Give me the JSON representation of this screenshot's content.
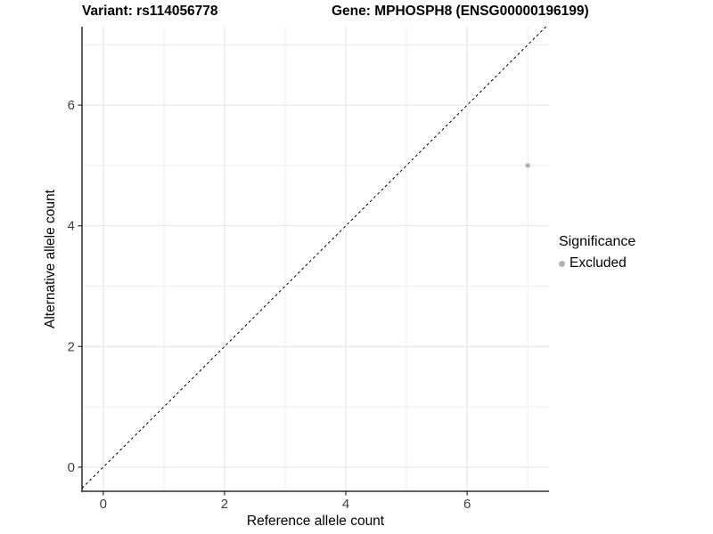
{
  "header": {
    "variant_title": "Variant: rs114056778",
    "gene_title": "Gene: MPHOSPH8 (ENSG00000196199)"
  },
  "legend": {
    "title": "Significance",
    "items": [
      {
        "label": "Excluded",
        "color": "#b3b3b3"
      }
    ],
    "position": "right"
  },
  "chart_data": {
    "type": "scatter",
    "title": "Variant: rs114056778   Gene: MPHOSPH8 (ENSG00000196199)",
    "xlabel": "Reference allele count",
    "ylabel": "Alternative allele count",
    "xlim": [
      -0.35,
      7.35
    ],
    "ylim": [
      -0.4,
      7.3
    ],
    "x_major_ticks": [
      0,
      2,
      4,
      6
    ],
    "y_major_ticks": [
      0,
      2,
      4,
      6
    ],
    "x_minor_gridlines": [
      1,
      3,
      5,
      7
    ],
    "y_minor_gridlines": [
      1,
      3,
      5,
      7
    ],
    "grid": true,
    "legend_position": "right",
    "series": [
      {
        "name": "Excluded",
        "color": "#b3b3b3",
        "points": [
          {
            "x": 7,
            "y": 5
          }
        ]
      }
    ],
    "reference_line": {
      "kind": "identity y=x",
      "style": "dashed",
      "color": "#000000"
    }
  },
  "colors": {
    "background": "#ffffff",
    "grid_major": "#e3e3e3",
    "grid_minor": "#ededed",
    "axis_line": "#2b2b2b",
    "tick_label": "#404040",
    "point": "#b3b3b3",
    "dashed_line": "#000000"
  }
}
